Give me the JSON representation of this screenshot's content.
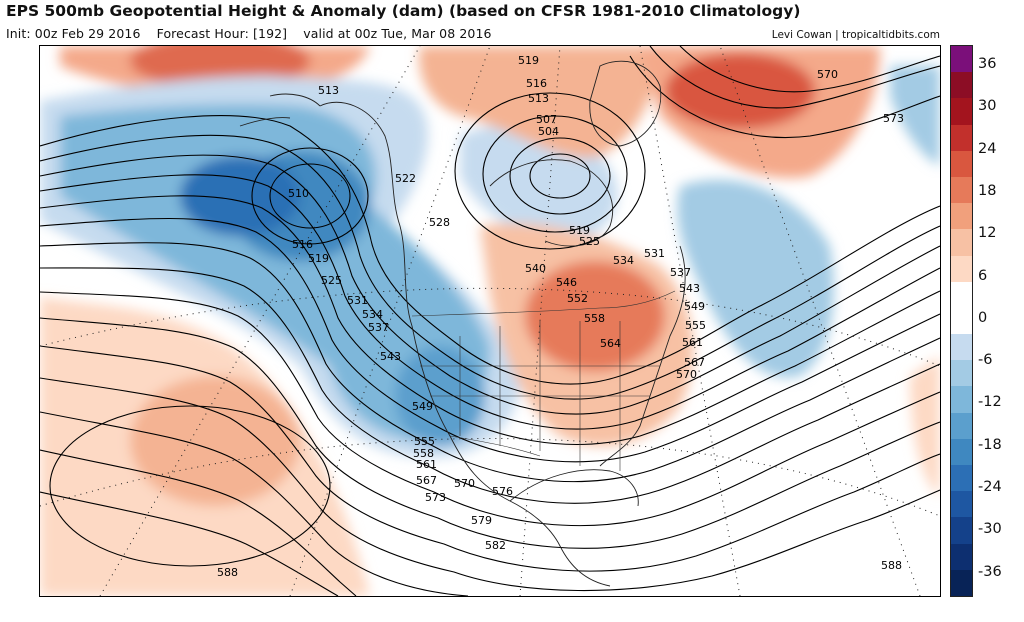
{
  "header": {
    "title": "EPS 500mb Geopotential Height & Anomaly (dam) (based on CFSR 1981-2010 Climatology)",
    "init": "Init: 00z Feb 29 2016",
    "forecast_hour": "Forecast Hour: [192]",
    "valid": "valid at 00z Tue, Mar 08 2016",
    "credit": "Levi Cowan | tropicaltidbits.com"
  },
  "colors": {
    "background": "#ffffff",
    "neg_light": "#c6dbef",
    "neg_mid": "#6baed6",
    "neg_dark": "#2c6fb5",
    "pos_light": "#fdd9c4",
    "pos_mid": "#f1a07c",
    "pos_dark": "#d9573f",
    "contour": "#000000",
    "coast": "#222222"
  },
  "colorbar": {
    "ticks": [
      "36",
      "30",
      "24",
      "18",
      "12",
      "6",
      "0",
      "-6",
      "-12",
      "-18",
      "-24",
      "-30",
      "-36"
    ],
    "segments": [
      "#7b0f7a",
      "#8c0d25",
      "#a3141e",
      "#c2302c",
      "#d9573f",
      "#e67a5a",
      "#f1a07c",
      "#f7c1a4",
      "#fdd9c4",
      "#ffffff",
      "#ffffff",
      "#c6dbef",
      "#a3cbe4",
      "#7eb7da",
      "#5b9fcd",
      "#3f88c0",
      "#2c6fb5",
      "#1e57a2",
      "#14418a",
      "#0d2f70",
      "#082357"
    ]
  },
  "map": {
    "contour_labels": [
      {
        "text": "519"
      },
      {
        "text": "516"
      },
      {
        "text": "513"
      },
      {
        "text": "507"
      },
      {
        "text": "504"
      },
      {
        "text": "513"
      },
      {
        "text": "510"
      },
      {
        "text": "516"
      },
      {
        "text": "519"
      },
      {
        "text": "522"
      },
      {
        "text": "525"
      },
      {
        "text": "528"
      },
      {
        "text": "531"
      },
      {
        "text": "534"
      },
      {
        "text": "537"
      },
      {
        "text": "543"
      },
      {
        "text": "549"
      },
      {
        "text": "555"
      },
      {
        "text": "558"
      },
      {
        "text": "561"
      },
      {
        "text": "567"
      },
      {
        "text": "573"
      },
      {
        "text": "570"
      },
      {
        "text": "576"
      },
      {
        "text": "579"
      },
      {
        "text": "582"
      },
      {
        "text": "588"
      },
      {
        "text": "519"
      },
      {
        "text": "525"
      },
      {
        "text": "531"
      },
      {
        "text": "534"
      },
      {
        "text": "537"
      },
      {
        "text": "540"
      },
      {
        "text": "543"
      },
      {
        "text": "546"
      },
      {
        "text": "552"
      },
      {
        "text": "549"
      },
      {
        "text": "558"
      },
      {
        "text": "555"
      },
      {
        "text": "564"
      },
      {
        "text": "561"
      },
      {
        "text": "567"
      },
      {
        "text": "570"
      },
      {
        "text": "570"
      },
      {
        "text": "573"
      },
      {
        "text": "588"
      }
    ]
  }
}
